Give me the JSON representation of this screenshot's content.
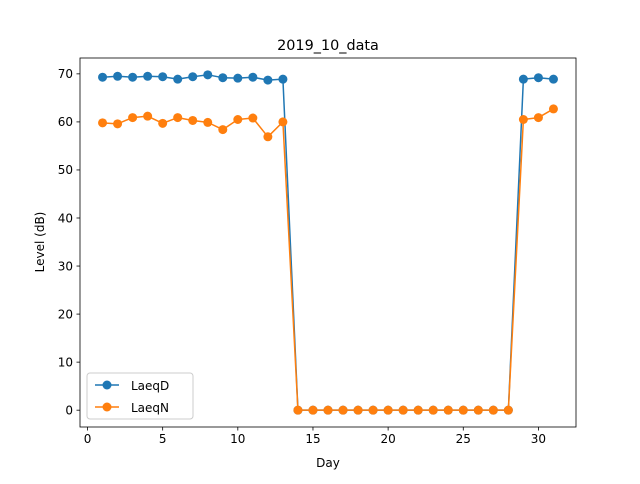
{
  "chart_data": {
    "type": "line",
    "title": "2019_10_data",
    "xlabel": "Day",
    "ylabel": "Level (dB)",
    "xlim": [
      -0.5,
      32.5
    ],
    "ylim": [
      -3.5,
      73.3
    ],
    "grid": false,
    "legend_position": "lower-left",
    "x_ticks": [
      0,
      5,
      10,
      15,
      20,
      25,
      30
    ],
    "x_tick_labels": [
      "0",
      "5",
      "10",
      "15",
      "20",
      "25",
      "30"
    ],
    "y_ticks": [
      0,
      10,
      20,
      30,
      40,
      50,
      60,
      70
    ],
    "y_tick_labels": [
      "0",
      "10",
      "20",
      "30",
      "40",
      "50",
      "60",
      "70"
    ],
    "x": [
      1,
      2,
      3,
      4,
      5,
      6,
      7,
      8,
      9,
      10,
      11,
      12,
      13,
      14,
      15,
      16,
      17,
      18,
      19,
      20,
      21,
      22,
      23,
      24,
      25,
      26,
      27,
      28,
      29,
      30,
      31
    ],
    "series": [
      {
        "name": "LaeqD",
        "color": "#1f77b4",
        "values": [
          69.3,
          69.5,
          69.3,
          69.5,
          69.4,
          68.9,
          69.4,
          69.8,
          69.2,
          69.1,
          69.3,
          68.7,
          68.9,
          0,
          0,
          0,
          0,
          0,
          0,
          0,
          0,
          0,
          0,
          0,
          0,
          0,
          0,
          0,
          68.9,
          69.2,
          68.9
        ]
      },
      {
        "name": "LaeqN",
        "color": "#ff7f0e",
        "values": [
          59.8,
          59.6,
          60.9,
          61.2,
          59.7,
          60.9,
          60.3,
          59.9,
          58.4,
          60.5,
          60.8,
          56.9,
          60.0,
          0,
          0,
          0,
          0,
          0,
          0,
          0,
          0,
          0,
          0,
          0,
          0,
          0,
          0,
          0,
          60.5,
          60.9,
          62.7
        ]
      }
    ]
  }
}
